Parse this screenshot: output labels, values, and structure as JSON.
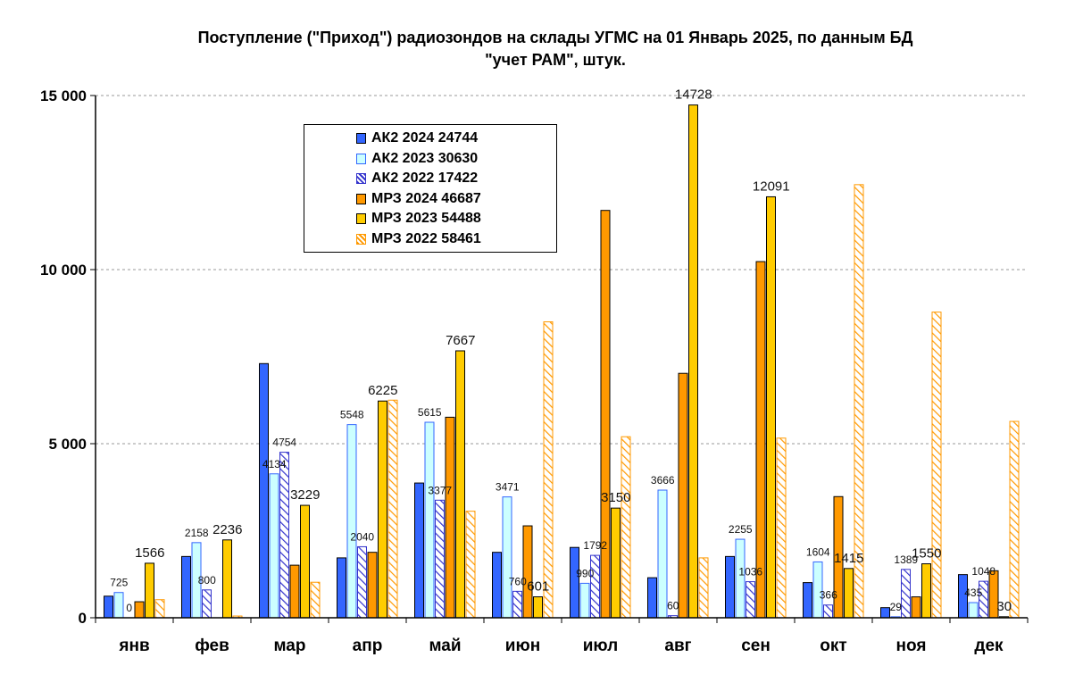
{
  "title_line1": "Поступление  (\"Приход\")  радиозондов на склады УГМС  на 01 Январь 2025, по данным БД",
  "title_line2": "\"учет РАМ\", штук.",
  "chart_data": {
    "type": "bar",
    "title": "Поступление  (\"Приход\")  радиозондов на склады УГМС  на 01 Январь 2025, по данным БД \"учет РАМ\", штук.",
    "categories": [
      "янв",
      "фев",
      "мар",
      "апр",
      "май",
      "июн",
      "июл",
      "авг",
      "сен",
      "окт",
      "ноя",
      "дек"
    ],
    "ylim": [
      0,
      15000
    ],
    "yticks": [
      0,
      5000,
      10000,
      15000
    ],
    "ytick_labels": [
      "0",
      "5 000",
      "10 000",
      "15 000"
    ],
    "grid": "horizontal-dashed",
    "legend_position": "top-left",
    "series": [
      {
        "name": "АК2 2024 24744",
        "color": "#3366ff",
        "pattern": "solid",
        "values": [
          620,
          1760,
          7300,
          1720,
          3870,
          1880,
          2020,
          1150,
          1760,
          1010,
          290,
          1240
        ],
        "labels": [
          null,
          null,
          null,
          null,
          null,
          null,
          null,
          null,
          null,
          null,
          null,
          null
        ]
      },
      {
        "name": "АК2 2023 30630",
        "color": "#ccffff",
        "pattern": "outline",
        "values": [
          725,
          2158,
          4134,
          5548,
          5615,
          3471,
          990,
          3666,
          2255,
          1604,
          29,
          435
        ],
        "labels": [
          "725",
          "2158",
          "4134",
          "5548",
          "5615",
          "3471",
          "990",
          "3666",
          "2255",
          "1604",
          "29",
          "435"
        ]
      },
      {
        "name": "АК2 2022 17422",
        "color": "#3333cc",
        "pattern": "hatch",
        "values": [
          0,
          800,
          4754,
          2040,
          3377,
          760,
          1792,
          60,
          1036,
          366,
          1389,
          1048
        ],
        "labels": [
          "0",
          "800",
          "4754",
          "2040",
          "3377",
          "760",
          "1792",
          "60",
          "1036",
          "366",
          "1389",
          "1048"
        ]
      },
      {
        "name": "МРЗ 2024 46687",
        "color": "#ff9900",
        "pattern": "solid",
        "values": [
          460,
          0,
          1510,
          1880,
          5760,
          2640,
          11700,
          7020,
          10230,
          3480,
          600,
          1350
        ],
        "labels": [
          null,
          null,
          null,
          null,
          null,
          null,
          null,
          null,
          null,
          null,
          null,
          null
        ]
      },
      {
        "name": "МРЗ 2023 54488",
        "color": "#ffcc00",
        "pattern": "solid",
        "values": [
          1566,
          2236,
          3229,
          6225,
          7667,
          601,
          3150,
          14728,
          12091,
          1415,
          1550,
          30
        ],
        "labels": [
          "1566",
          "2236",
          "3229",
          "6225",
          "7667",
          "601",
          "3150",
          "14728",
          "12091",
          "1415",
          "1550",
          "30"
        ]
      },
      {
        "name": "МРЗ 2022 58461",
        "color": "#ff9900",
        "pattern": "hatch",
        "values": [
          520,
          50,
          1020,
          6250,
          3060,
          8500,
          5200,
          1720,
          5160,
          12440,
          8780,
          5640
        ],
        "labels": [
          null,
          null,
          null,
          null,
          null,
          null,
          null,
          null,
          null,
          null,
          null,
          null
        ]
      }
    ]
  }
}
